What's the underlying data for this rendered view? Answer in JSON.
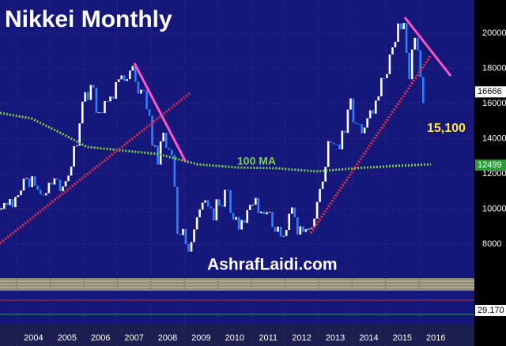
{
  "chart_data": {
    "type": "candlestick",
    "title": "Nikkei Monthly",
    "series": [
      {
        "name": "Nikkei",
        "up_color": "#ffffff",
        "down_color": "#2f7fff",
        "close": [
          10000,
          10340,
          10220,
          10560,
          10100,
          10676,
          10780,
          11040,
          11715,
          11760,
          11236,
          11858,
          11325,
          11081,
          10823,
          10771,
          10899,
          11488,
          11387,
          11740,
          11668,
          11008,
          11276,
          11584,
          11899,
          12413,
          13574,
          13606,
          14872,
          16111,
          16649,
          16205,
          17059,
          16906,
          15467,
          15505,
          15456,
          16140,
          16127,
          16399,
          16274,
          17225,
          17383,
          17604,
          17287,
          17400,
          17875,
          18138,
          17248,
          16569,
          16785,
          16737,
          15680,
          15307,
          13592,
          13603,
          12525,
          13849,
          14338,
          13481,
          13376,
          13072,
          11259,
          8576,
          8512,
          8859,
          7994,
          7568,
          8109,
          8828,
          9522,
          9958,
          10356,
          10492,
          10133,
          10034,
          9345,
          10546,
          10198,
          10126,
          11089,
          11057,
          9768,
          9382,
          9537,
          8824,
          9369,
          9202,
          9937,
          10228,
          10237,
          10624,
          9755,
          9849,
          9693,
          9816,
          9833,
          8955,
          8700,
          8988,
          8434,
          8455,
          8802,
          9723,
          10083,
          9520,
          8542,
          9006,
          8695,
          8839,
          8870,
          8928,
          9446,
          10395,
          11138,
          11559,
          12397,
          13860,
          13774,
          13677,
          13668,
          13388,
          14455,
          14327,
          15662,
          16291,
          14914,
          14841,
          14827,
          14304,
          14632,
          15162,
          15620,
          15425,
          16173,
          16414,
          17459,
          17450,
          17674,
          18797,
          19206,
          19520,
          20563,
          20235,
          20585,
          18890,
          17388,
          19083,
          19747,
          19033,
          17518,
          16027
        ]
      }
    ],
    "xlim": [
      2003.5,
      2017.65
    ],
    "xticks": [
      2004,
      2005,
      2006,
      2007,
      2008,
      2009,
      2010,
      2011,
      2012,
      2013,
      2014,
      2015,
      2016
    ],
    "ylim": [
      6150,
      21900
    ],
    "yticks": [
      8000,
      10000,
      12000,
      14000,
      16000,
      18000,
      20000
    ],
    "price_label": 16666,
    "ma_label": 12499,
    "annotations": {
      "ma_name": "100 MA",
      "target": "15,100",
      "watermark": "AshrafLaidi.com",
      "oscillator": "29.170"
    }
  }
}
